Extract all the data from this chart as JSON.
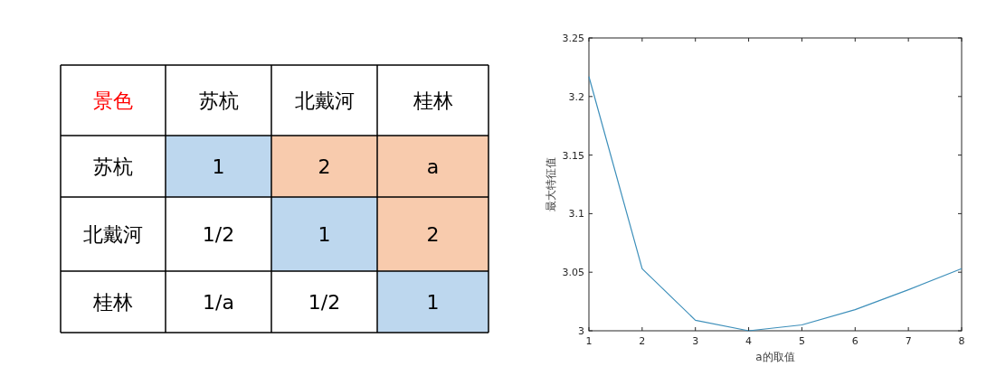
{
  "chart_data": [
    {
      "type": "other",
      "title": "景色",
      "categories": [
        "苏杭",
        "北戴河",
        "桂林"
      ],
      "y_categories": [
        "苏杭",
        "北戴河",
        "桂林"
      ],
      "cell_labels": [
        [
          "1",
          "2",
          "a"
        ],
        [
          "1/2",
          "1",
          "2"
        ],
        [
          "1/a",
          "1/2",
          "1"
        ]
      ],
      "colors": [
        [
          "#bdd7ee",
          "#f8cbad",
          "#f8cbad"
        ],
        [
          "#ffffff",
          "#bdd7ee",
          "#f8cbad"
        ],
        [
          "#ffffff",
          "#ffffff",
          "#bdd7ee"
        ]
      ]
    },
    {
      "type": "line",
      "xlabel": "a的取值",
      "ylabel": "最大特征值",
      "x": [
        1,
        2,
        3,
        4,
        5,
        6,
        7,
        8
      ],
      "values": [
        3.217,
        3.053,
        3.009,
        3.0,
        3.005,
        3.018,
        3.035,
        3.053
      ],
      "color": "#3d8fba",
      "xlim": [
        1,
        8
      ],
      "ylim": [
        3,
        3.25
      ],
      "xticks": [
        1,
        2,
        3,
        4,
        5,
        6,
        7,
        8
      ],
      "yticks": [
        3,
        3.05,
        3.1,
        3.15,
        3.2,
        3.25
      ]
    }
  ]
}
